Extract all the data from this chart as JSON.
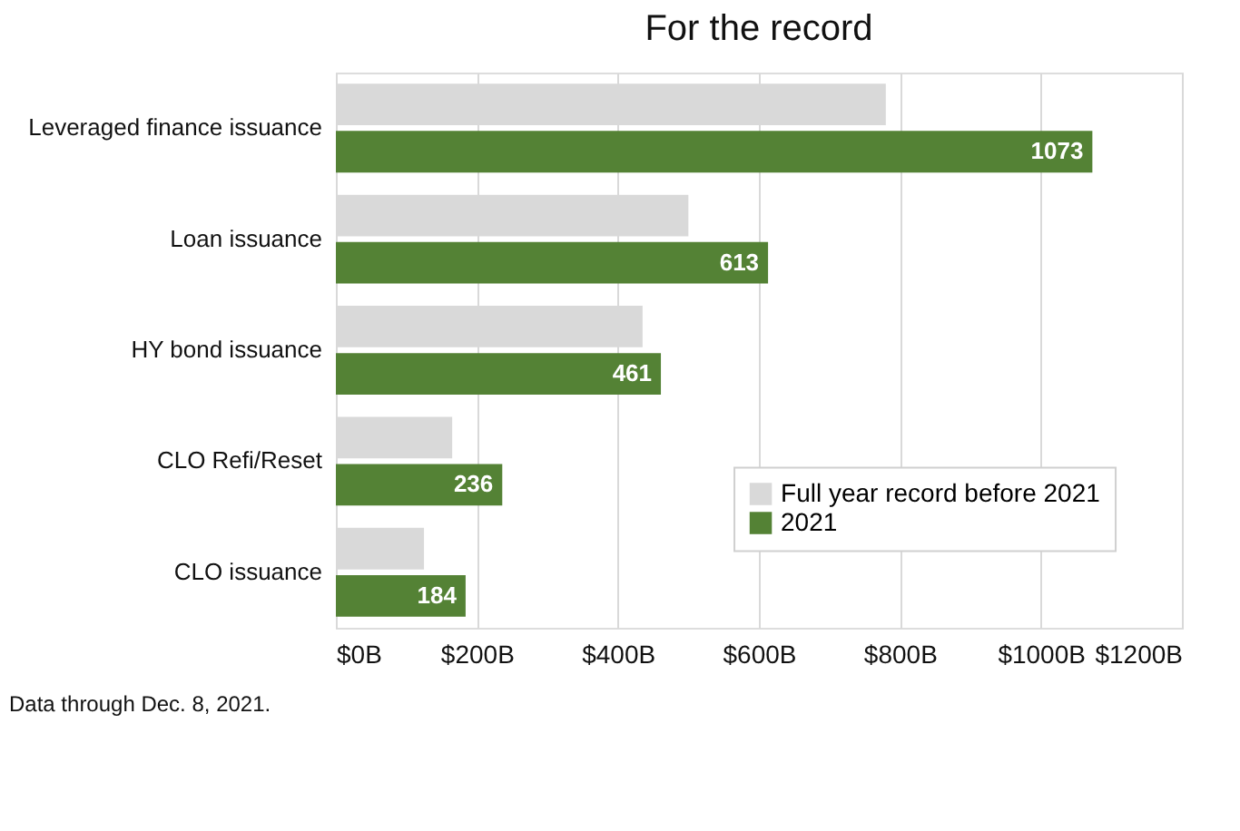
{
  "chart_data": {
    "type": "bar",
    "orientation": "horizontal",
    "title": "For the record",
    "categories": [
      "Leveraged finance issuance",
      "Loan issuance",
      "HY bond issuance",
      "CLO Refi/Reset",
      "CLO issuance"
    ],
    "series": [
      {
        "name": "Full year record before 2021",
        "color": "#d9d9d9",
        "values": [
          780,
          500,
          435,
          165,
          125
        ]
      },
      {
        "name": "2021",
        "color": "#548235",
        "values": [
          1073,
          613,
          461,
          236,
          184
        ],
        "value_labels": [
          "1073",
          "613",
          "461",
          "236",
          "184"
        ]
      }
    ],
    "xlim": [
      0,
      1200
    ],
    "xticks": [
      {
        "value": 0,
        "label": "$0B"
      },
      {
        "value": 200,
        "label": "$200B"
      },
      {
        "value": 400,
        "label": "$400B"
      },
      {
        "value": 600,
        "label": "$600B"
      },
      {
        "value": 800,
        "label": "$800B"
      },
      {
        "value": 1000,
        "label": "$1000B"
      },
      {
        "value": 1200,
        "label": "$1200B"
      }
    ],
    "grid": "x",
    "legend": "bottom right",
    "annotations": [
      "Data through Dec. 8, 2021."
    ]
  }
}
